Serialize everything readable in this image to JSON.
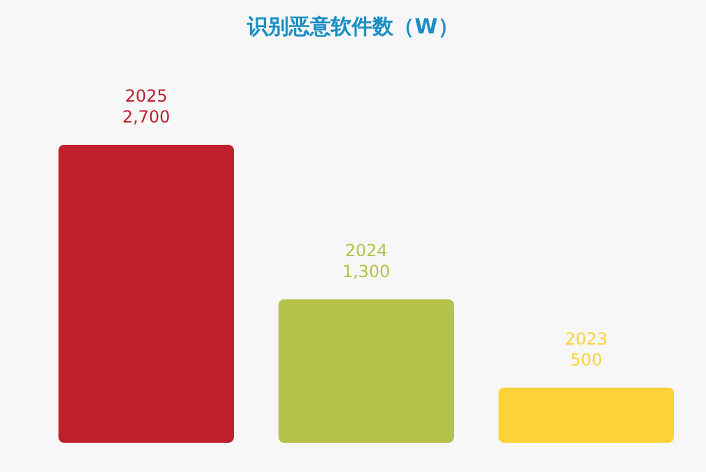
{
  "chart_data": {
    "type": "bar",
    "title": "识别恶意软件数（W）",
    "categories": [
      "2025",
      "2024",
      "2023"
    ],
    "values": [
      2700,
      1300,
      500
    ],
    "value_labels": [
      "2,700",
      "1,300",
      "500"
    ],
    "colors": [
      "#c0202e",
      "#b5c24a",
      "#fdd13a"
    ]
  }
}
